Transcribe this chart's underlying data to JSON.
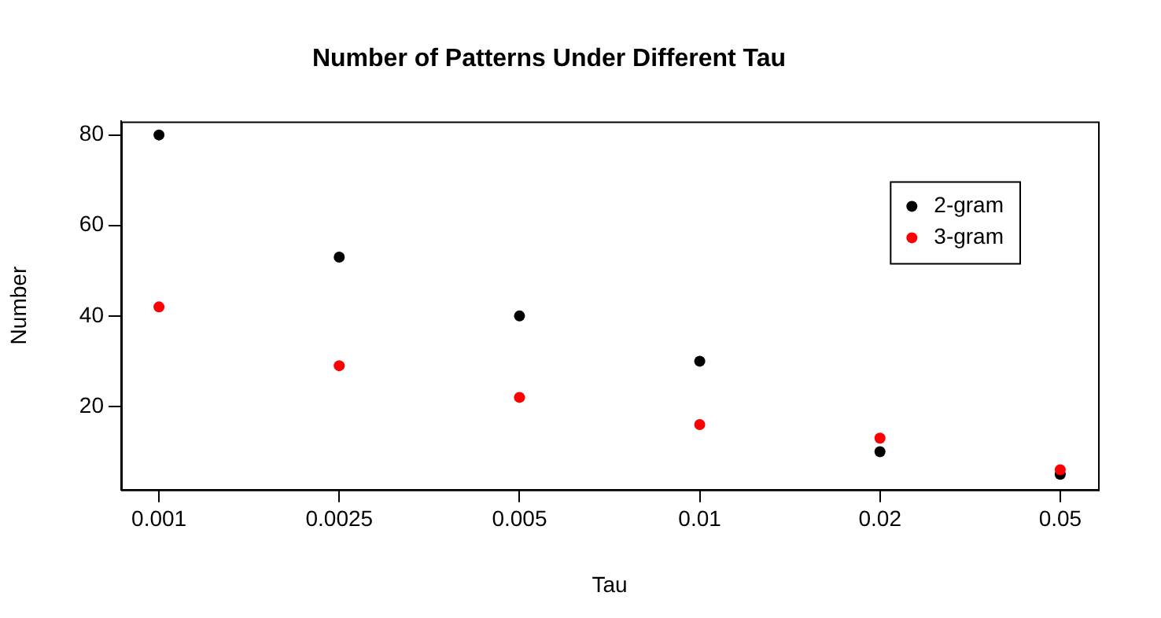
{
  "chart_data": {
    "type": "scatter",
    "title": "Number of Patterns Under Different Tau",
    "xlabel": "Tau",
    "ylabel": "Number",
    "categories": [
      "0.001",
      "0.0025",
      "0.005",
      "0.01",
      "0.02",
      "0.05"
    ],
    "series": [
      {
        "name": "2-gram",
        "color": "#000000",
        "values": [
          80,
          53,
          40,
          30,
          10,
          5
        ]
      },
      {
        "name": "3-gram",
        "color": "#ff0000",
        "values": [
          42,
          29,
          22,
          16,
          13,
          6
        ]
      }
    ],
    "ylim": [
      1.6,
      83
    ],
    "yticks": [
      20,
      40,
      60,
      80
    ],
    "grid": false,
    "legend": "top right",
    "marker": "circle"
  }
}
